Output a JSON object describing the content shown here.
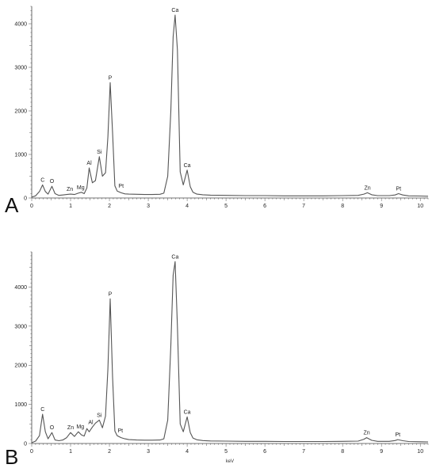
{
  "chart_data": [
    {
      "type": "line",
      "panel_label": "A",
      "xlabel": "",
      "ylabel": "",
      "xlim": [
        0,
        10.2
      ],
      "ylim": [
        0,
        4400
      ],
      "x_ticks": [
        0,
        1,
        2,
        3,
        4,
        5,
        6,
        7,
        8,
        9,
        10
      ],
      "y_ticks": [
        0,
        1000,
        2000,
        3000,
        4000
      ],
      "grid": false,
      "series": [
        {
          "color": "#555555",
          "x": [
            0.0,
            0.1,
            0.2,
            0.28,
            0.35,
            0.42,
            0.52,
            0.6,
            0.7,
            0.8,
            0.9,
            1.0,
            1.1,
            1.2,
            1.28,
            1.35,
            1.42,
            1.48,
            1.56,
            1.64,
            1.74,
            1.82,
            1.9,
            1.96,
            2.02,
            2.08,
            2.14,
            2.2,
            2.3,
            2.4,
            2.5,
            2.7,
            2.9,
            3.1,
            3.3,
            3.4,
            3.5,
            3.58,
            3.64,
            3.69,
            3.75,
            3.82,
            3.9,
            4.0,
            4.08,
            4.15,
            4.25,
            4.4,
            4.6,
            5.0,
            5.5,
            6.0,
            6.5,
            7.0,
            7.5,
            8.0,
            8.4,
            8.55,
            8.64,
            8.75,
            8.9,
            9.2,
            9.35,
            9.44,
            9.55,
            9.7,
            10.0,
            10.2
          ],
          "y": [
            20,
            50,
            150,
            300,
            150,
            90,
            270,
            100,
            60,
            70,
            80,
            90,
            80,
            110,
            130,
            100,
            230,
            690,
            350,
            400,
            950,
            500,
            580,
            1400,
            2650,
            1500,
            280,
            160,
            120,
            95,
            90,
            85,
            80,
            80,
            85,
            110,
            500,
            2000,
            3700,
            4200,
            3400,
            600,
            300,
            640,
            260,
            130,
            90,
            75,
            65,
            60,
            55,
            55,
            50,
            50,
            50,
            55,
            60,
            90,
            120,
            75,
            55,
            55,
            70,
            100,
            70,
            50,
            45,
            40
          ]
        }
      ],
      "annotations": [
        {
          "text": "C",
          "x": 0.28,
          "y": 300
        },
        {
          "text": "O",
          "x": 0.52,
          "y": 270
        },
        {
          "text": "Zn",
          "x": 0.98,
          "y": 90
        },
        {
          "text": "Mg",
          "x": 1.26,
          "y": 130
        },
        {
          "text": "Al",
          "x": 1.48,
          "y": 690
        },
        {
          "text": "Si",
          "x": 1.74,
          "y": 950
        },
        {
          "text": "P",
          "x": 2.02,
          "y": 2650
        },
        {
          "text": "Pt",
          "x": 2.3,
          "y": 160
        },
        {
          "text": "Ca",
          "x": 3.69,
          "y": 4200
        },
        {
          "text": "Ca",
          "x": 4.0,
          "y": 640
        },
        {
          "text": "Zn",
          "x": 8.64,
          "y": 120
        },
        {
          "text": "Pt",
          "x": 9.44,
          "y": 100
        }
      ]
    },
    {
      "type": "line",
      "panel_label": "B",
      "xlabel": "keV",
      "ylabel": "",
      "xlim": [
        0,
        10.2
      ],
      "ylim": [
        0,
        4900
      ],
      "x_ticks": [
        0,
        1,
        2,
        3,
        4,
        5,
        6,
        7,
        8,
        9,
        10
      ],
      "y_ticks": [
        0,
        1000,
        2000,
        3000,
        4000
      ],
      "grid": false,
      "series": [
        {
          "color": "#555555",
          "x": [
            0.0,
            0.1,
            0.2,
            0.28,
            0.35,
            0.42,
            0.52,
            0.6,
            0.7,
            0.8,
            0.9,
            1.0,
            1.1,
            1.2,
            1.28,
            1.35,
            1.42,
            1.48,
            1.56,
            1.64,
            1.74,
            1.82,
            1.9,
            1.96,
            2.02,
            2.08,
            2.14,
            2.2,
            2.3,
            2.4,
            2.5,
            2.7,
            2.9,
            3.1,
            3.3,
            3.4,
            3.5,
            3.58,
            3.64,
            3.69,
            3.75,
            3.82,
            3.9,
            4.0,
            4.08,
            4.15,
            4.25,
            4.4,
            4.6,
            5.0,
            5.5,
            6.0,
            6.5,
            7.0,
            7.5,
            8.0,
            8.4,
            8.55,
            8.62,
            8.75,
            8.9,
            9.2,
            9.35,
            9.42,
            9.55,
            9.7,
            10.0,
            10.2
          ],
          "y": [
            20,
            60,
            200,
            750,
            300,
            120,
            280,
            90,
            70,
            90,
            150,
            280,
            180,
            300,
            220,
            190,
            380,
            300,
            420,
            520,
            600,
            400,
            700,
            1900,
            3700,
            1700,
            320,
            200,
            150,
            120,
            100,
            90,
            85,
            85,
            90,
            120,
            600,
            2500,
            4300,
            4650,
            3000,
            500,
            300,
            680,
            280,
            140,
            95,
            75,
            65,
            60,
            55,
            55,
            50,
            50,
            50,
            55,
            60,
            110,
            150,
            80,
            55,
            55,
            75,
            100,
            70,
            50,
            45,
            40
          ]
        }
      ],
      "annotations": [
        {
          "text": "C",
          "x": 0.28,
          "y": 750
        },
        {
          "text": "O",
          "x": 0.52,
          "y": 280
        },
        {
          "text": "Zn",
          "x": 1.0,
          "y": 280
        },
        {
          "text": "Mg",
          "x": 1.25,
          "y": 300
        },
        {
          "text": "Al",
          "x": 1.52,
          "y": 420
        },
        {
          "text": "Si",
          "x": 1.74,
          "y": 600
        },
        {
          "text": "P",
          "x": 2.02,
          "y": 3700
        },
        {
          "text": "Pt",
          "x": 2.28,
          "y": 200
        },
        {
          "text": "Ca",
          "x": 3.69,
          "y": 4650
        },
        {
          "text": "Ca",
          "x": 4.0,
          "y": 680
        },
        {
          "text": "Zn",
          "x": 8.62,
          "y": 150
        },
        {
          "text": "Pt",
          "x": 9.42,
          "y": 100
        }
      ]
    }
  ]
}
